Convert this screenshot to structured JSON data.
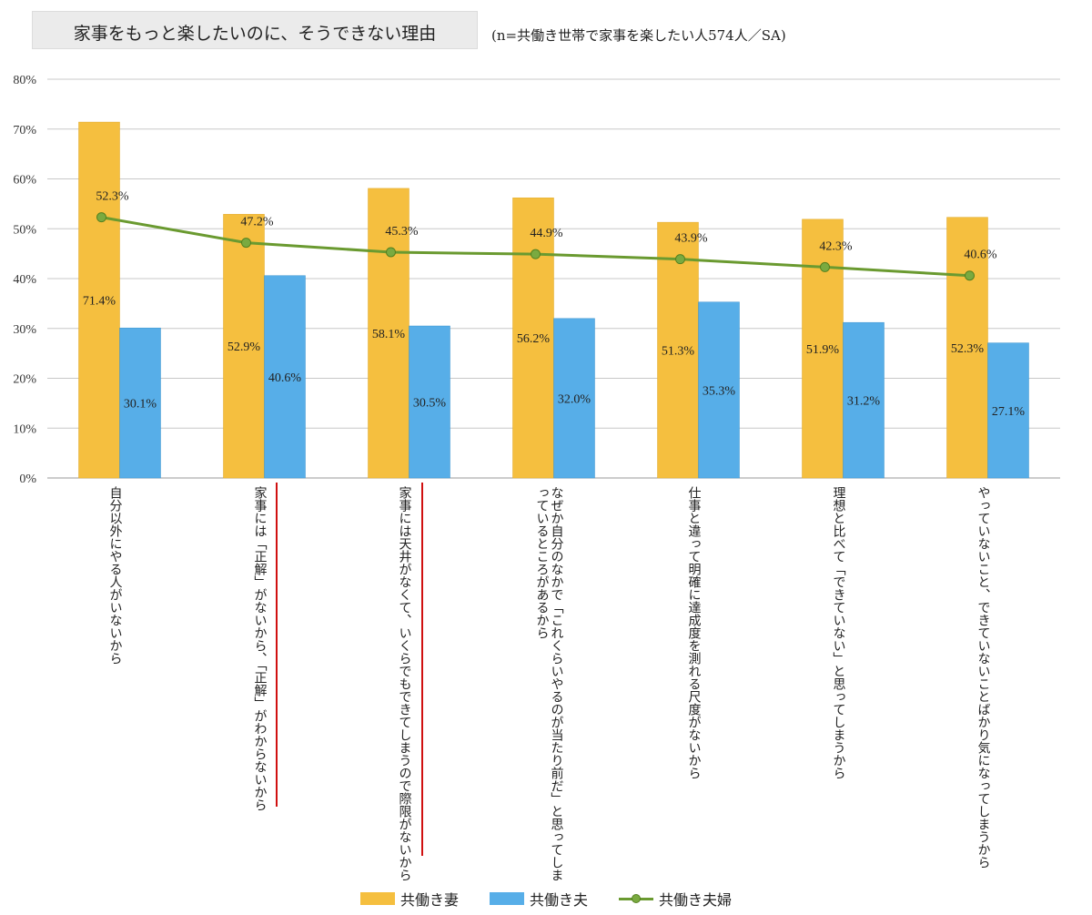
{
  "title": "家事をもっと楽したいのに、そうできない理由",
  "subtitle": "(n=共働き世帯で家事を楽したい人574人／SA)",
  "chart_data": {
    "type": "bar+line",
    "title": "家事をもっと楽したいのに、そうできない理由",
    "ylim": [
      0,
      80
    ],
    "yticks": [
      "0%",
      "10%",
      "20%",
      "30%",
      "40%",
      "50%",
      "60%",
      "70%",
      "80%"
    ],
    "grid": true,
    "legend_position": "bottom",
    "categories": [
      "自分以外にやる人がいないから",
      "家事には「正解」がないから、「正解」がわからないから",
      "家事には天井がなくて、いくらでもできてしまうので際限がないから",
      "なぜか自分のなかで「これくらいやるのが当たり前だ」と思ってしまっているところがあるから",
      "仕事と違って明確に達成度を測れる尺度がないから",
      "理想と比べて「できていない」と思ってしまうから",
      "やっていないこと、できていないことばかり気になってしまうから"
    ],
    "category_lines": [
      [
        "自分以外にやる人がいないから"
      ],
      [
        "家事には「正解」がないから、「正解」がわからないから"
      ],
      [
        "家事には天井がなくて、いくらでもできてしまうので際限がないから"
      ],
      [
        "なぜか自分のなかで「これくらいやるのが当たり前だ」と思ってしま",
        "っているところがあるから"
      ],
      [
        "仕事と違って明確に達成度を測れる尺度がないから"
      ],
      [
        "理想と比べて「できていない」と思ってしまうから"
      ],
      [
        "やっていないこと、できていないことばかり気になってしまうから"
      ]
    ],
    "series": [
      {
        "name": "共働き妻",
        "type": "bar",
        "color": "#f5bf3f",
        "values": [
          71.4,
          52.9,
          58.1,
          56.2,
          51.3,
          51.9,
          52.3
        ],
        "labels": [
          "71.4%",
          "52.9%",
          "58.1%",
          "56.2%",
          "51.3%",
          "51.9%",
          "52.3%"
        ]
      },
      {
        "name": "共働き夫",
        "type": "bar",
        "color": "#57aee8",
        "values": [
          30.1,
          40.6,
          30.5,
          32.0,
          35.3,
          31.2,
          27.1
        ],
        "labels": [
          "30.1%",
          "40.6%",
          "30.5%",
          "32.0%",
          "35.3%",
          "31.2%",
          "27.1%"
        ]
      },
      {
        "name": "共働き夫婦",
        "type": "line",
        "color": "#6a9a30",
        "values": [
          52.3,
          47.2,
          45.3,
          44.9,
          43.9,
          42.3,
          40.6
        ],
        "labels": [
          "52.3%",
          "47.2%",
          "45.3%",
          "44.9%",
          "43.9%",
          "42.3%",
          "40.6%"
        ]
      }
    ]
  }
}
